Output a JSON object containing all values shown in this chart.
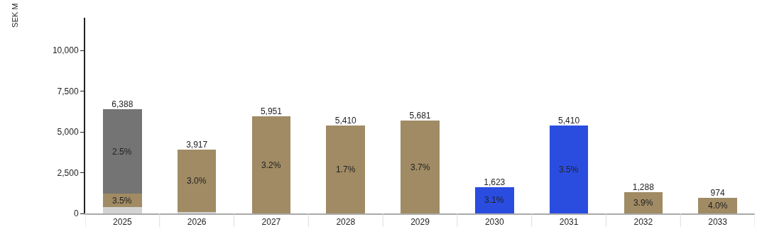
{
  "chart_data": {
    "type": "bar",
    "stacked": true,
    "ylabel": "SEK M",
    "categories": [
      "2025",
      "2026",
      "2027",
      "2028",
      "2029",
      "2030",
      "2031",
      "2032",
      "2033"
    ],
    "series": [
      {
        "color": "#d3d3d3",
        "values": [
          400,
          80,
          null,
          null,
          null,
          null,
          null,
          null,
          null
        ]
      },
      {
        "color": "#a08b64",
        "values": [
          800,
          3837,
          5951,
          5410,
          5681,
          null,
          null,
          1288,
          974
        ]
      },
      {
        "color": "#747474",
        "values": [
          5188,
          null,
          null,
          null,
          null,
          null,
          null,
          null,
          null
        ]
      },
      {
        "color": "#2a4de0",
        "values": [
          null,
          null,
          null,
          null,
          null,
          1623,
          5410,
          null,
          null
        ]
      }
    ],
    "totals": [
      "6,388",
      "3,917",
      "5,951",
      "5,410",
      "5,681",
      "1,623",
      "5,410",
      "1,288",
      "974"
    ],
    "annotations": [
      "3.5%",
      "2.5%",
      "3.0%",
      "3.2%",
      "1.7%",
      "3.7%",
      "3.1%",
      "3.5%",
      "3.9%",
      "4.0%"
    ],
    "ylim": [
      0,
      12000
    ],
    "yticks": [
      0,
      {
        "value": 2500,
        "label": "2,500"
      },
      {
        "value": 5000,
        "label": "5,000"
      },
      {
        "value": 7500,
        "label": "7,500"
      },
      {
        "value": 10000,
        "label": "10,000"
      }
    ]
  }
}
